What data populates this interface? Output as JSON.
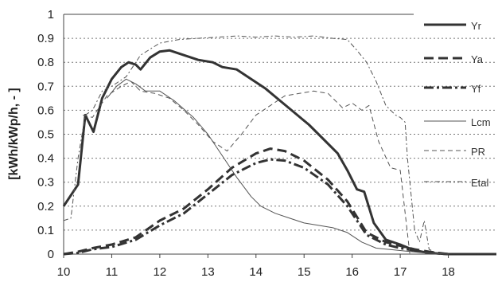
{
  "chart_data": {
    "type": "line",
    "title": "",
    "xlabel": "",
    "ylabel": "[kWh/kWp/h,  -  ]",
    "xlim": [
      10,
      19
    ],
    "ylim": [
      0,
      1
    ],
    "xticks": [
      "10",
      "11",
      "12",
      "13",
      "14",
      "15",
      "16",
      "17",
      "18"
    ],
    "yticks": [
      "0",
      "0.1",
      "0.2",
      "0.3",
      "0.4",
      "0.5",
      "0.6",
      "0.7",
      "0.8",
      "0.9",
      "1"
    ],
    "grid": "horizontal dotted",
    "legend_position": "right",
    "series": [
      {
        "name": "Yr",
        "style": "solid-thick",
        "color": "#333333",
        "points": [
          [
            10,
            0.2
          ],
          [
            10.3,
            0.29
          ],
          [
            10.45,
            0.58
          ],
          [
            10.62,
            0.51
          ],
          [
            10.8,
            0.65
          ],
          [
            11,
            0.73
          ],
          [
            11.2,
            0.78
          ],
          [
            11.35,
            0.8
          ],
          [
            11.5,
            0.79
          ],
          [
            11.6,
            0.77
          ],
          [
            11.8,
            0.82
          ],
          [
            12,
            0.845
          ],
          [
            12.2,
            0.85
          ],
          [
            12.5,
            0.83
          ],
          [
            12.8,
            0.81
          ],
          [
            13.1,
            0.8
          ],
          [
            13.3,
            0.78
          ],
          [
            13.6,
            0.77
          ],
          [
            13.9,
            0.73
          ],
          [
            14.2,
            0.69
          ],
          [
            14.5,
            0.64
          ],
          [
            14.8,
            0.59
          ],
          [
            15.1,
            0.54
          ],
          [
            15.4,
            0.48
          ],
          [
            15.7,
            0.42
          ],
          [
            15.9,
            0.35
          ],
          [
            16.1,
            0.27
          ],
          [
            16.25,
            0.26
          ],
          [
            16.45,
            0.13
          ],
          [
            16.7,
            0.06
          ],
          [
            17,
            0.04
          ],
          [
            17.3,
            0.015
          ],
          [
            17.6,
            0.005
          ],
          [
            18,
            0
          ],
          [
            19,
            0
          ]
        ]
      },
      {
        "name": "Ya",
        "style": "dashed-thick",
        "color": "#333333",
        "points": [
          [
            10,
            0
          ],
          [
            10.3,
            0.01
          ],
          [
            10.6,
            0.025
          ],
          [
            11,
            0.04
          ],
          [
            11.5,
            0.07
          ],
          [
            12,
            0.14
          ],
          [
            12.5,
            0.19
          ],
          [
            13,
            0.27
          ],
          [
            13.5,
            0.36
          ],
          [
            14,
            0.42
          ],
          [
            14.3,
            0.44
          ],
          [
            14.6,
            0.43
          ],
          [
            15,
            0.39
          ],
          [
            15.5,
            0.31
          ],
          [
            15.9,
            0.22
          ],
          [
            16.3,
            0.09
          ],
          [
            16.7,
            0.05
          ],
          [
            17,
            0.035
          ],
          [
            17.3,
            0.02
          ],
          [
            17.6,
            0.01
          ],
          [
            18,
            0
          ],
          [
            19,
            0
          ]
        ]
      },
      {
        "name": "Yf",
        "style": "dashdot-thick",
        "color": "#333333",
        "points": [
          [
            10,
            0
          ],
          [
            10.3,
            0.005
          ],
          [
            10.6,
            0.02
          ],
          [
            11,
            0.03
          ],
          [
            11.5,
            0.06
          ],
          [
            12,
            0.12
          ],
          [
            12.5,
            0.17
          ],
          [
            13,
            0.25
          ],
          [
            13.5,
            0.33
          ],
          [
            14,
            0.38
          ],
          [
            14.3,
            0.395
          ],
          [
            14.6,
            0.39
          ],
          [
            15,
            0.36
          ],
          [
            15.5,
            0.29
          ],
          [
            15.9,
            0.2
          ],
          [
            16.3,
            0.08
          ],
          [
            16.7,
            0.04
          ],
          [
            17,
            0.025
          ],
          [
            17.3,
            0.015
          ],
          [
            17.6,
            0.005
          ],
          [
            18,
            0
          ],
          [
            19,
            0
          ]
        ]
      },
      {
        "name": "Lcm",
        "style": "solid-thin",
        "color": "#555555",
        "points": [
          [
            10.9,
            0.65
          ],
          [
            11.1,
            0.7
          ],
          [
            11.3,
            0.73
          ],
          [
            11.5,
            0.71
          ],
          [
            11.7,
            0.68
          ],
          [
            12,
            0.68
          ],
          [
            12.3,
            0.64
          ],
          [
            12.7,
            0.57
          ],
          [
            13,
            0.5
          ],
          [
            13.3,
            0.41
          ],
          [
            13.6,
            0.32
          ],
          [
            13.9,
            0.24
          ],
          [
            14.1,
            0.2
          ],
          [
            14.4,
            0.17
          ],
          [
            14.7,
            0.15
          ],
          [
            15,
            0.13
          ],
          [
            15.3,
            0.12
          ],
          [
            15.6,
            0.11
          ],
          [
            15.9,
            0.09
          ],
          [
            16.2,
            0.05
          ],
          [
            16.5,
            0.025
          ],
          [
            17,
            0.015
          ],
          [
            17.5,
            0.005
          ],
          [
            18,
            0
          ]
        ]
      },
      {
        "name": "PR",
        "style": "dashed-thin",
        "color": "#555555",
        "points": [
          [
            10.4,
            0.58
          ],
          [
            10.6,
            0.57
          ],
          [
            10.9,
            0.66
          ],
          [
            11.2,
            0.7
          ],
          [
            11.4,
            0.72
          ],
          [
            11.6,
            0.68
          ],
          [
            11.9,
            0.67
          ],
          [
            12.2,
            0.65
          ],
          [
            12.5,
            0.6
          ],
          [
            12.8,
            0.54
          ],
          [
            13.1,
            0.47
          ],
          [
            13.4,
            0.43
          ],
          [
            13.7,
            0.5
          ],
          [
            14,
            0.58
          ],
          [
            14.3,
            0.62
          ],
          [
            14.6,
            0.66
          ],
          [
            14.9,
            0.67
          ],
          [
            15.2,
            0.68
          ],
          [
            15.5,
            0.67
          ],
          [
            15.8,
            0.61
          ],
          [
            16,
            0.63
          ],
          [
            16.2,
            0.6
          ],
          [
            16.35,
            0.62
          ],
          [
            16.55,
            0.47
          ],
          [
            16.8,
            0.36
          ],
          [
            17,
            0.35
          ],
          [
            17.2,
            0.0
          ]
        ]
      },
      {
        "name": "Etal",
        "style": "dashdot-thin",
        "color": "#555555",
        "points": [
          [
            10,
            0.14
          ],
          [
            10.15,
            0.15
          ],
          [
            10.3,
            0.4
          ],
          [
            10.45,
            0.58
          ],
          [
            10.6,
            0.6
          ],
          [
            10.8,
            0.68
          ],
          [
            11,
            0.7
          ],
          [
            11.3,
            0.74
          ],
          [
            11.6,
            0.83
          ],
          [
            12,
            0.88
          ],
          [
            12.4,
            0.895
          ],
          [
            12.8,
            0.9
          ],
          [
            13.2,
            0.905
          ],
          [
            13.6,
            0.91
          ],
          [
            14,
            0.905
          ],
          [
            14.4,
            0.91
          ],
          [
            14.8,
            0.905
          ],
          [
            15.2,
            0.91
          ],
          [
            15.6,
            0.9
          ],
          [
            15.9,
            0.895
          ],
          [
            16.1,
            0.85
          ],
          [
            16.3,
            0.8
          ],
          [
            16.5,
            0.72
          ],
          [
            16.7,
            0.62
          ],
          [
            16.9,
            0.58
          ],
          [
            17,
            0.57
          ],
          [
            17.1,
            0.55
          ],
          [
            17.15,
            0.4
          ],
          [
            17.3,
            0.1
          ],
          [
            17.4,
            0.05
          ],
          [
            17.5,
            0.14
          ],
          [
            17.6,
            0.02
          ],
          [
            17.8,
            0
          ]
        ]
      }
    ]
  }
}
